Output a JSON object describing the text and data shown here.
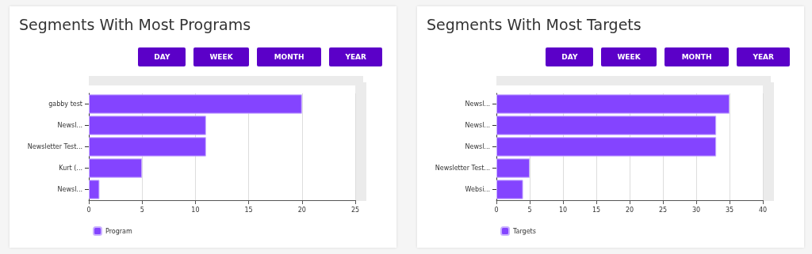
{
  "chart_data": [
    {
      "type": "bar",
      "orientation": "horizontal",
      "title": "Segments With Most Programs",
      "annotations": [
        "DAY",
        "WEEK",
        "MONTH",
        "YEAR"
      ],
      "categories": [
        "gabby test",
        "Newsl...",
        "Newsletter Test...",
        "Kurt (...",
        "Newsl..."
      ],
      "series": [
        {
          "name": "Program",
          "color": "#8444ff",
          "values": [
            20,
            11,
            11,
            5,
            1
          ]
        }
      ],
      "xlim": [
        0,
        25
      ],
      "xticks": [
        0,
        5,
        10,
        15,
        20,
        25
      ],
      "grid": "x",
      "legend": "bottom left"
    },
    {
      "type": "bar",
      "orientation": "horizontal",
      "title": "Segments With Most Targets",
      "annotations": [
        "DAY",
        "WEEK",
        "MONTH",
        "YEAR"
      ],
      "categories": [
        "Newsl...",
        "Newsl...",
        "Newsl...",
        "Newsletter Test...",
        "Websi..."
      ],
      "series": [
        {
          "name": "Targets",
          "color": "#8444ff",
          "values": [
            35,
            33,
            33,
            5,
            4
          ]
        }
      ],
      "xlim": [
        0,
        40
      ],
      "xticks": [
        0,
        5,
        10,
        15,
        20,
        25,
        30,
        35,
        40
      ],
      "grid": "x",
      "legend": "bottom left"
    }
  ]
}
